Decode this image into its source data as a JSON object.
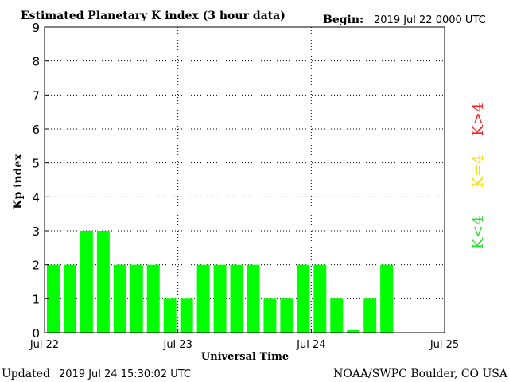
{
  "header": {
    "title": "Estimated Planetary K index (3 hour data)",
    "begin_label": "Begin:",
    "begin_value": "2019 Jul 22 0000 UTC"
  },
  "footer": {
    "updated_label": "Updated",
    "updated_value": "2019 Jul 24 15:30:02 UTC",
    "credit": "NOAA/SWPC Boulder, CO USA"
  },
  "legend": {
    "high": "K>4",
    "mid": "K=4",
    "low": "K<4"
  },
  "colors": {
    "bar": "#00ff00",
    "high": "#ff2020",
    "mid": "#ffd700",
    "low": "#33dd33",
    "grid": "#000000"
  },
  "chart_data": {
    "type": "bar",
    "title": "Estimated Planetary K index (3 hour data)",
    "xlabel": "Universal Time",
    "ylabel": "Kp index",
    "ylim": [
      0,
      9
    ],
    "y_ticks": [
      "0",
      "1",
      "2",
      "3",
      "4",
      "5",
      "6",
      "7",
      "8",
      "9"
    ],
    "x_ticks": [
      "Jul 22",
      "Jul 23",
      "Jul 24",
      "Jul 25"
    ],
    "interval_hours": 3,
    "slots": 24,
    "values": [
      2,
      2,
      3,
      3,
      2,
      2,
      2,
      1,
      1,
      2,
      2,
      2,
      2,
      1,
      1,
      2,
      2,
      1,
      0.07,
      1,
      2
    ],
    "grid": true
  }
}
